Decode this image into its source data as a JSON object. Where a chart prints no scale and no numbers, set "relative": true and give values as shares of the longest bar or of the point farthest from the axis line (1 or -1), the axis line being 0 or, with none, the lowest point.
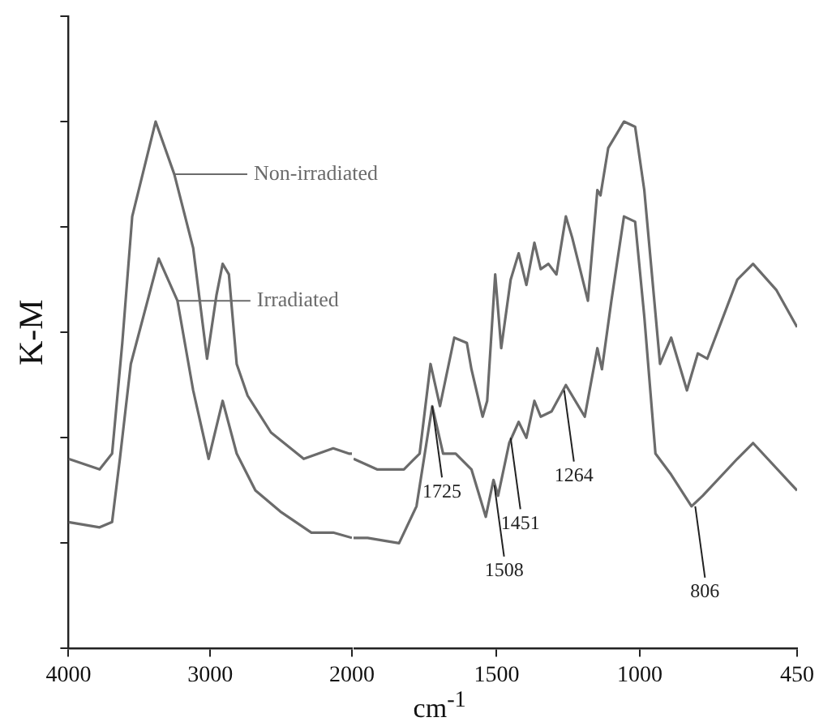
{
  "chart_data": [
    {
      "type": "line",
      "xlabel": "cm$^{-1}$",
      "ylabel": "K-M",
      "relative": true,
      "legend": "top right",
      "grid": false,
      "marker": "none",
      "line_style": "solid",
      "tick_labels": "x",
      "xlim": [
        4000,
        2000
      ],
      "xticks": [
        4000,
        3000,
        2000
      ],
      "series": [
        {
          "name": "Non-irradiated",
          "color": "#6b6b6b",
          "x": [
            4000,
            3780,
            3692,
            3620,
            3550,
            3385,
            3253,
            3120,
            3022,
            2956,
            2912,
            2868,
            2813,
            2736,
            2571,
            2340,
            2132,
            2022,
            2000
          ],
          "values": [
            0.36,
            0.34,
            0.37,
            0.58,
            0.82,
            1,
            0.9,
            0.76,
            0.55,
            0.67,
            0.73,
            0.71,
            0.54,
            0.48,
            0.41,
            0.36,
            0.38,
            0.37,
            0.37
          ]
        },
        {
          "name": "Irradiated",
          "color": "#6b6b6b",
          "x": [
            4000,
            3780,
            3692,
            3637,
            3560,
            3363,
            3231,
            3120,
            3011,
            2912,
            2813,
            2681,
            2505,
            2286,
            2132,
            2000
          ],
          "values": [
            0.24,
            0.23,
            0.24,
            0.36,
            0.54,
            0.74,
            0.66,
            0.49,
            0.36,
            0.47,
            0.37,
            0.3,
            0.26,
            0.22,
            0.22,
            0.21
          ]
        }
      ]
    },
    {
      "type": "line",
      "relative": true,
      "legend": false,
      "grid": false,
      "marker": "none",
      "line_style": "solid",
      "tick_labels": "x",
      "xlim": [
        2000,
        450
      ],
      "xticks": [
        1500,
        1000,
        450
      ],
      "series": [
        {
          "color": "#6b6b6b",
          "x": [
            2000,
            1918,
            1824,
            1769,
            1731,
            1698,
            1648,
            1604,
            1588,
            1549,
            1533,
            1505,
            1484,
            1451,
            1423,
            1396,
            1368,
            1346,
            1319,
            1291,
            1258,
            1236,
            1181,
            1148,
            1137,
            1110,
            1055,
            1016,
            984,
            929,
            890,
            835,
            797,
            764,
            659,
            604,
            522,
            450
          ],
          "values": [
            0.36,
            0.34,
            0.34,
            0.37,
            0.54,
            0.46,
            0.59,
            0.58,
            0.53,
            0.44,
            0.47,
            0.71,
            0.57,
            0.7,
            0.75,
            0.69,
            0.77,
            0.72,
            0.73,
            0.71,
            0.82,
            0.78,
            0.66,
            0.87,
            0.86,
            0.95,
            1,
            0.99,
            0.87,
            0.54,
            0.59,
            0.49,
            0.56,
            0.55,
            0.7,
            0.73,
            0.68,
            0.61
          ]
        },
        {
          "color": "#6b6b6b",
          "x": [
            2000,
            1951,
            1841,
            1780,
            1725,
            1687,
            1643,
            1588,
            1538,
            1511,
            1495,
            1456,
            1423,
            1396,
            1368,
            1346,
            1308,
            1258,
            1192,
            1148,
            1132,
            1099,
            1055,
            1016,
            984,
            945,
            890,
            819,
            780,
            659,
            604,
            450
          ],
          "values": [
            0.21,
            0.21,
            0.2,
            0.27,
            0.46,
            0.37,
            0.37,
            0.34,
            0.25,
            0.32,
            0.29,
            0.39,
            0.43,
            0.4,
            0.47,
            0.44,
            0.45,
            0.5,
            0.44,
            0.57,
            0.53,
            0.66,
            0.82,
            0.81,
            0.63,
            0.37,
            0.33,
            0.27,
            0.29,
            0.36,
            0.39,
            0.3
          ]
        }
      ],
      "annotations": [
        {
          "text": "1725",
          "x": 1725,
          "y": 0.46
        },
        {
          "text": "1508",
          "x": 1508,
          "y": 0.31
        },
        {
          "text": "1451",
          "x": 1451,
          "y": 0.4
        },
        {
          "text": "1264",
          "x": 1264,
          "y": 0.49
        },
        {
          "text": "806",
          "x": 806,
          "y": 0.27
        }
      ]
    }
  ]
}
